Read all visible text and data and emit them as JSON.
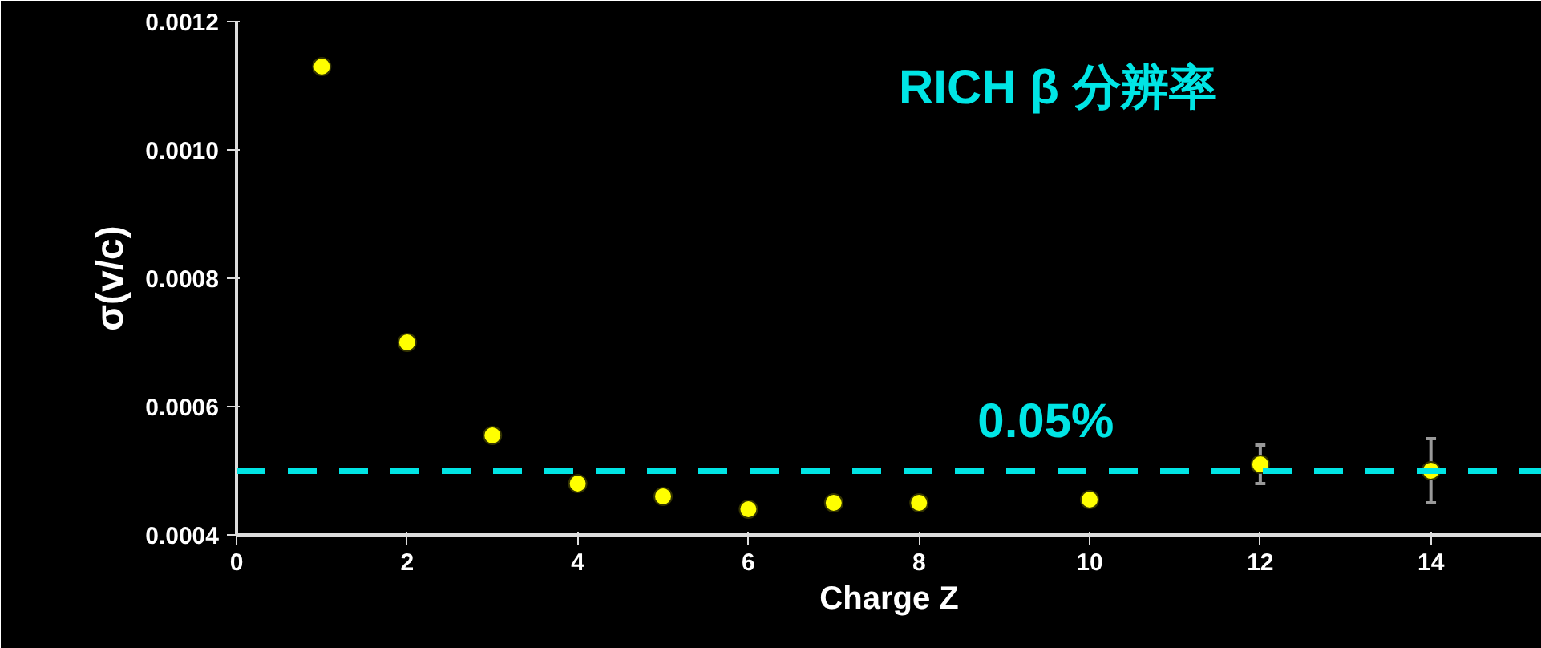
{
  "chart_data": {
    "type": "scatter",
    "title": "RICH β 分辨率",
    "xlabel": "Charge Z",
    "ylabel": "σ(v/c)",
    "x": [
      1,
      2,
      3,
      4,
      5,
      6,
      7,
      8,
      10,
      12,
      14
    ],
    "values": [
      0.00113,
      0.0007,
      0.000555,
      0.00048,
      0.00046,
      0.00044,
      0.00045,
      0.00045,
      0.000455,
      0.00051,
      0.0005
    ],
    "errors": [
      null,
      null,
      null,
      null,
      null,
      null,
      null,
      null,
      null,
      3e-05,
      5e-05
    ],
    "color": "#ffff00",
    "marker": "circle",
    "grid": false,
    "xlim": [
      0,
      15.3
    ],
    "ylim": [
      0.0004,
      0.0012
    ],
    "xticks": [
      0,
      2,
      4,
      6,
      8,
      10,
      12,
      14
    ],
    "yticks": [
      {
        "value": 0.0004,
        "label": "0.0004"
      },
      {
        "value": 0.0006,
        "label": "0.0006"
      },
      {
        "value": 0.0008,
        "label": "0.0008"
      },
      {
        "value": 0.001,
        "label": "0.0010"
      },
      {
        "value": 0.0012,
        "label": "0.0012"
      }
    ],
    "ref_lines": [
      {
        "axis": "y",
        "value": 0.0005,
        "label": "0.05%",
        "color": "#00e5e5",
        "line_style": "dashed"
      }
    ]
  }
}
